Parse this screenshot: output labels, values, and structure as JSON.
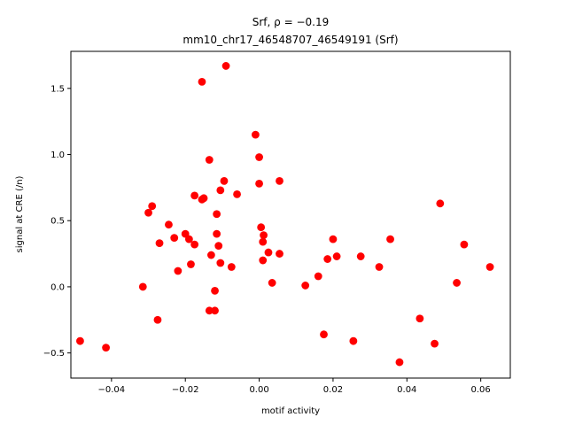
{
  "chart_data": {
    "type": "scatter",
    "title_line1": "Srf, ρ = −0.19",
    "title_line2": "mm10_chr17_46548707_46549191 (Srf)",
    "xlabel": "motif activity",
    "ylabel": "signal at CRE (/n)",
    "xlim": [
      -0.051,
      0.068
    ],
    "ylim": [
      -0.69,
      1.78
    ],
    "xticks": [
      -0.04,
      -0.02,
      0.0,
      0.02,
      0.04,
      0.06
    ],
    "xtick_labels": [
      "−0.04",
      "−0.02",
      "0.00",
      "0.02",
      "0.04",
      "0.06"
    ],
    "yticks": [
      -0.5,
      0.0,
      0.5,
      1.0,
      1.5
    ],
    "ytick_labels": [
      "−0.5",
      "0.0",
      "0.5",
      "1.0",
      "1.5"
    ],
    "grid": false,
    "marker_color": "#ff0000",
    "points": [
      [
        -0.0485,
        -0.41
      ],
      [
        -0.0415,
        -0.46
      ],
      [
        -0.0315,
        0.0
      ],
      [
        -0.03,
        0.56
      ],
      [
        -0.029,
        0.61
      ],
      [
        -0.0275,
        -0.25
      ],
      [
        -0.027,
        0.33
      ],
      [
        -0.0245,
        0.47
      ],
      [
        -0.023,
        0.37
      ],
      [
        -0.022,
        0.12
      ],
      [
        -0.02,
        0.4
      ],
      [
        -0.019,
        0.36
      ],
      [
        -0.0185,
        0.17
      ],
      [
        -0.0175,
        0.69
      ],
      [
        -0.0175,
        0.32
      ],
      [
        -0.0155,
        1.55
      ],
      [
        -0.0155,
        0.66
      ],
      [
        -0.015,
        0.67
      ],
      [
        -0.0135,
        0.96
      ],
      [
        -0.0135,
        -0.18
      ],
      [
        -0.013,
        0.24
      ],
      [
        -0.012,
        -0.03
      ],
      [
        -0.012,
        -0.18
      ],
      [
        -0.0115,
        0.55
      ],
      [
        -0.0115,
        0.4
      ],
      [
        -0.011,
        0.31
      ],
      [
        -0.0105,
        0.73
      ],
      [
        -0.0105,
        0.18
      ],
      [
        -0.0095,
        0.8
      ],
      [
        -0.009,
        1.67
      ],
      [
        -0.0075,
        0.15
      ],
      [
        -0.006,
        0.7
      ],
      [
        -0.001,
        1.15
      ],
      [
        0.0,
        0.98
      ],
      [
        0.0,
        0.78
      ],
      [
        0.0005,
        0.45
      ],
      [
        0.001,
        0.34
      ],
      [
        0.001,
        0.2
      ],
      [
        0.0012,
        0.39
      ],
      [
        0.0025,
        0.26
      ],
      [
        0.0035,
        0.03
      ],
      [
        0.0055,
        0.25
      ],
      [
        0.0055,
        0.8
      ],
      [
        0.0125,
        0.01
      ],
      [
        0.016,
        0.08
      ],
      [
        0.0175,
        -0.36
      ],
      [
        0.0185,
        0.21
      ],
      [
        0.02,
        0.36
      ],
      [
        0.021,
        0.23
      ],
      [
        0.0255,
        -0.41
      ],
      [
        0.0275,
        0.23
      ],
      [
        0.0325,
        0.15
      ],
      [
        0.0355,
        0.36
      ],
      [
        0.038,
        -0.57
      ],
      [
        0.0435,
        -0.24
      ],
      [
        0.0475,
        -0.43
      ],
      [
        0.049,
        0.63
      ],
      [
        0.0535,
        0.03
      ],
      [
        0.0555,
        0.32
      ],
      [
        0.0625,
        0.15
      ]
    ]
  }
}
